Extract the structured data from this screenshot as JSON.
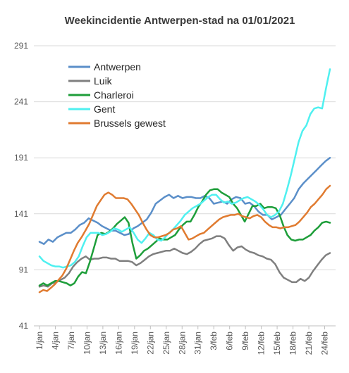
{
  "chart_data": {
    "type": "line",
    "title": "Weekincidentie  Antwerpen-stad  na 01/01/2021",
    "ylim": [
      41,
      291
    ],
    "yticks": [
      41,
      91,
      141,
      191,
      241,
      291
    ],
    "grid": true,
    "legend_position": "top-left",
    "x_tick_labels": [
      "1/jan",
      "4/jan",
      "7/jan",
      "10/jan",
      "13/jan",
      "16/jan",
      "19/jan",
      "22/jan",
      "25/jan",
      "28/jan",
      "31/jan",
      "3/feb",
      "6/feb",
      "9/feb",
      "12/feb",
      "15/feb",
      "18/feb",
      "21/feb",
      "24/feb"
    ],
    "x_tick_step_days": 3,
    "num_days": 56,
    "series": [
      {
        "name": "Antwerpen",
        "color": "#5b8fc9",
        "values": [
          116,
          114,
          118,
          116,
          120,
          122,
          124,
          124,
          127,
          131,
          133,
          137,
          135,
          133,
          130,
          128,
          126,
          126,
          124,
          122,
          123,
          128,
          130,
          133,
          136,
          142,
          150,
          153,
          156,
          158,
          155,
          157,
          155,
          156,
          156,
          155,
          155,
          157,
          155,
          150,
          151,
          152,
          150,
          154,
          156,
          155,
          150,
          151,
          148,
          143,
          140,
          140,
          136,
          138,
          140,
          145,
          150,
          155,
          163,
          168,
          172,
          176,
          180,
          184,
          188,
          191
        ]
      },
      {
        "name": "Luik",
        "color": "#7f7f7f",
        "values": [
          76,
          77,
          76,
          79,
          80,
          82,
          84,
          88,
          94,
          98,
          101,
          103,
          100,
          101,
          101,
          102,
          102,
          101,
          101,
          99,
          99,
          99,
          98,
          95,
          97,
          100,
          103,
          105,
          106,
          107,
          108,
          108,
          110,
          108,
          106,
          105,
          107,
          110,
          114,
          117,
          118,
          119,
          121,
          121,
          119,
          113,
          108,
          111,
          112,
          109,
          107,
          106,
          104,
          103,
          101,
          100,
          96,
          89,
          84,
          82,
          80,
          80,
          83,
          81,
          84,
          90,
          95,
          100,
          104,
          106
        ]
      },
      {
        "name": "Charleroi",
        "color": "#1e9e3a",
        "values": [
          77,
          79,
          77,
          79,
          81,
          81,
          80,
          79,
          77,
          79,
          85,
          89,
          88,
          98,
          110,
          122,
          124,
          123,
          125,
          128,
          132,
          135,
          138,
          133,
          115,
          101,
          104,
          108,
          110,
          113,
          116,
          119,
          118,
          118,
          120,
          122,
          127,
          131,
          134,
          134,
          140,
          147,
          152,
          158,
          162,
          163,
          163,
          160,
          158,
          156,
          150,
          146,
          140,
          134,
          141,
          148,
          148,
          150,
          146,
          147,
          147,
          146,
          140,
          130,
          122,
          118,
          117,
          118,
          118,
          120,
          122,
          126,
          129,
          133,
          134,
          133
        ]
      },
      {
        "name": "Gent",
        "color": "#4ff0f0",
        "values": [
          103,
          99,
          97,
          95,
          94,
          94,
          93,
          94,
          95,
          98,
          103,
          112,
          120,
          124,
          124,
          124,
          122,
          123,
          125,
          128,
          127,
          125,
          127,
          129,
          124,
          118,
          115,
          119,
          124,
          122,
          118,
          117,
          120,
          124,
          127,
          131,
          135,
          140,
          143,
          146,
          148,
          150,
          153,
          156,
          158,
          158,
          154,
          151,
          152,
          150,
          151,
          153,
          155,
          156,
          154,
          152,
          149,
          145,
          140,
          138,
          140,
          143,
          150,
          162,
          175,
          190,
          205,
          215,
          220,
          230,
          235,
          236,
          235,
          253,
          270
        ]
      },
      {
        "name": "Brussels gewest",
        "color": "#e07b30",
        "values": [
          71,
          73,
          72,
          75,
          78,
          82,
          86,
          92,
          100,
          108,
          115,
          120,
          126,
          132,
          140,
          148,
          153,
          158,
          160,
          158,
          155,
          155,
          155,
          154,
          150,
          145,
          140,
          133,
          127,
          122,
          120,
          120,
          121,
          122,
          124,
          127,
          128,
          130,
          124,
          118,
          119,
          121,
          123,
          124,
          127,
          130,
          133,
          136,
          138,
          139,
          140,
          140,
          141,
          139,
          138,
          137,
          139,
          140,
          138,
          134,
          131,
          129,
          129,
          128,
          129,
          129,
          130,
          131,
          134,
          138,
          142,
          147,
          150,
          154,
          158,
          163,
          166
        ]
      }
    ]
  }
}
